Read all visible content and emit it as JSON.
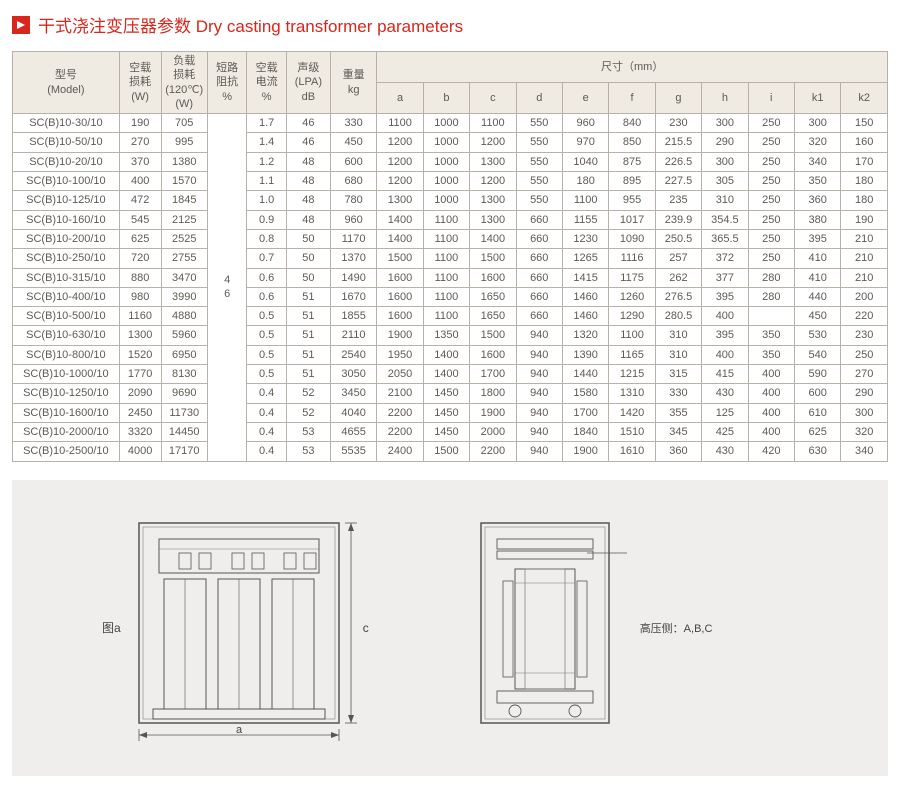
{
  "title": "干式浇注变压器参数 Dry casting transformer parameters",
  "headers": {
    "model": "型号\n(Model)",
    "noload": "空载\n损耗\n(W)",
    "load": "负载\n损耗\n(120℃)\n(W)",
    "imp": "短路\n阻抗\n%",
    "cur": "空载\n电流\n%",
    "sound": "声级\n(LPA)\ndB",
    "weight": "重量\nkg",
    "dim_title": "尺寸（mm）",
    "dims": [
      "a",
      "b",
      "c",
      "d",
      "e",
      "f",
      "g",
      "h",
      "i",
      "k1",
      "k2"
    ]
  },
  "impedance_merged": "4\n6",
  "rows": [
    {
      "m": "SC(B)10-30/10",
      "v": [
        "190",
        "705",
        "",
        "1.7",
        "46",
        "330",
        "1100",
        "1000",
        "1100",
        "550",
        "960",
        "840",
        "230",
        "300",
        "250",
        "300",
        "150"
      ]
    },
    {
      "m": "SC(B)10-50/10",
      "v": [
        "270",
        "995",
        "",
        "1.4",
        "46",
        "450",
        "1200",
        "1000",
        "1200",
        "550",
        "970",
        "850",
        "215.5",
        "290",
        "250",
        "320",
        "160"
      ]
    },
    {
      "m": "SC(B)10-20/10",
      "v": [
        "370",
        "1380",
        "",
        "1.2",
        "48",
        "600",
        "1200",
        "1000",
        "1300",
        "550",
        "1040",
        "875",
        "226.5",
        "300",
        "250",
        "340",
        "170"
      ]
    },
    {
      "m": "SC(B)10-100/10",
      "v": [
        "400",
        "1570",
        "",
        "1.1",
        "48",
        "680",
        "1200",
        "1000",
        "1200",
        "550",
        "180",
        "895",
        "227.5",
        "305",
        "250",
        "350",
        "180"
      ]
    },
    {
      "m": "SC(B)10-125/10",
      "v": [
        "472",
        "1845",
        "",
        "1.0",
        "48",
        "780",
        "1300",
        "1000",
        "1300",
        "550",
        "1100",
        "955",
        "235",
        "310",
        "250",
        "360",
        "180"
      ]
    },
    {
      "m": "SC(B)10-160/10",
      "v": [
        "545",
        "2125",
        "",
        "0.9",
        "48",
        "960",
        "1400",
        "1100",
        "1300",
        "660",
        "1155",
        "1017",
        "239.9",
        "354.5",
        "250",
        "380",
        "190"
      ]
    },
    {
      "m": "SC(B)10-200/10",
      "v": [
        "625",
        "2525",
        "",
        "0.8",
        "50",
        "1170",
        "1400",
        "1100",
        "1400",
        "660",
        "1230",
        "1090",
        "250.5",
        "365.5",
        "250",
        "395",
        "210"
      ]
    },
    {
      "m": "SC(B)10-250/10",
      "v": [
        "720",
        "2755",
        "",
        "0.7",
        "50",
        "1370",
        "1500",
        "1100",
        "1500",
        "660",
        "1265",
        "1116",
        "257",
        "372",
        "250",
        "410",
        "210"
      ]
    },
    {
      "m": "SC(B)10-315/10",
      "v": [
        "880",
        "3470",
        "",
        "0.6",
        "50",
        "1490",
        "1600",
        "1100",
        "1600",
        "660",
        "1415",
        "1175",
        "262",
        "377",
        "280",
        "410",
        "210"
      ]
    },
    {
      "m": "SC(B)10-400/10",
      "v": [
        "980",
        "3990",
        "",
        "0.6",
        "51",
        "1670",
        "1600",
        "1100",
        "1650",
        "660",
        "1460",
        "1260",
        "276.5",
        "395",
        "280",
        "440",
        "200"
      ]
    },
    {
      "m": "SC(B)10-500/10",
      "v": [
        "1160",
        "4880",
        "",
        "0.5",
        "51",
        "1855",
        "1600",
        "1100",
        "1650",
        "660",
        "1460",
        "1290",
        "280.5",
        "400",
        "",
        "450",
        "220"
      ]
    },
    {
      "m": "SC(B)10-630/10",
      "v": [
        "1300",
        "5960",
        "",
        "0.5",
        "51",
        "2110",
        "1900",
        "1350",
        "1500",
        "940",
        "1320",
        "1100",
        "310",
        "395",
        "350",
        "530",
        "230"
      ]
    },
    {
      "m": "SC(B)10-800/10",
      "v": [
        "1520",
        "6950",
        "",
        "0.5",
        "51",
        "2540",
        "1950",
        "1400",
        "1600",
        "940",
        "1390",
        "1165",
        "310",
        "400",
        "350",
        "540",
        "250"
      ]
    },
    {
      "m": "SC(B)10-1000/10",
      "v": [
        "1770",
        "8130",
        "",
        "0.5",
        "51",
        "3050",
        "2050",
        "1400",
        "1700",
        "940",
        "1440",
        "1215",
        "315",
        "415",
        "400",
        "590",
        "270"
      ]
    },
    {
      "m": "SC(B)10-1250/10",
      "v": [
        "2090",
        "9690",
        "",
        "0.4",
        "52",
        "3450",
        "2100",
        "1450",
        "1800",
        "940",
        "1580",
        "1310",
        "330",
        "430",
        "400",
        "600",
        "290"
      ]
    },
    {
      "m": "SC(B)10-1600/10",
      "v": [
        "2450",
        "11730",
        "",
        "0.4",
        "52",
        "4040",
        "2200",
        "1450",
        "1900",
        "940",
        "1700",
        "1420",
        "355",
        "125",
        "400",
        "610",
        "300"
      ]
    },
    {
      "m": "SC(B)10-2000/10",
      "v": [
        "3320",
        "14450",
        "",
        "0.4",
        "53",
        "4655",
        "2200",
        "1450",
        "2000",
        "940",
        "1840",
        "1510",
        "345",
        "425",
        "400",
        "625",
        "320"
      ]
    },
    {
      "m": "SC(B)10-2500/10",
      "v": [
        "4000",
        "17170",
        "",
        "0.4",
        "53",
        "5535",
        "2400",
        "1500",
        "2200",
        "940",
        "1900",
        "1610",
        "360",
        "430",
        "420",
        "630",
        "340"
      ]
    }
  ],
  "diagram": {
    "label_a": "图a",
    "dim_a": "a",
    "dim_c": "c",
    "right_note": "高压侧：A,B,C"
  },
  "colors": {
    "accent": "#d8261c",
    "border": "#b9b1a8",
    "th_bg": "#efeae2",
    "text": "#5e5a54",
    "diag_bg": "#efeeec"
  }
}
